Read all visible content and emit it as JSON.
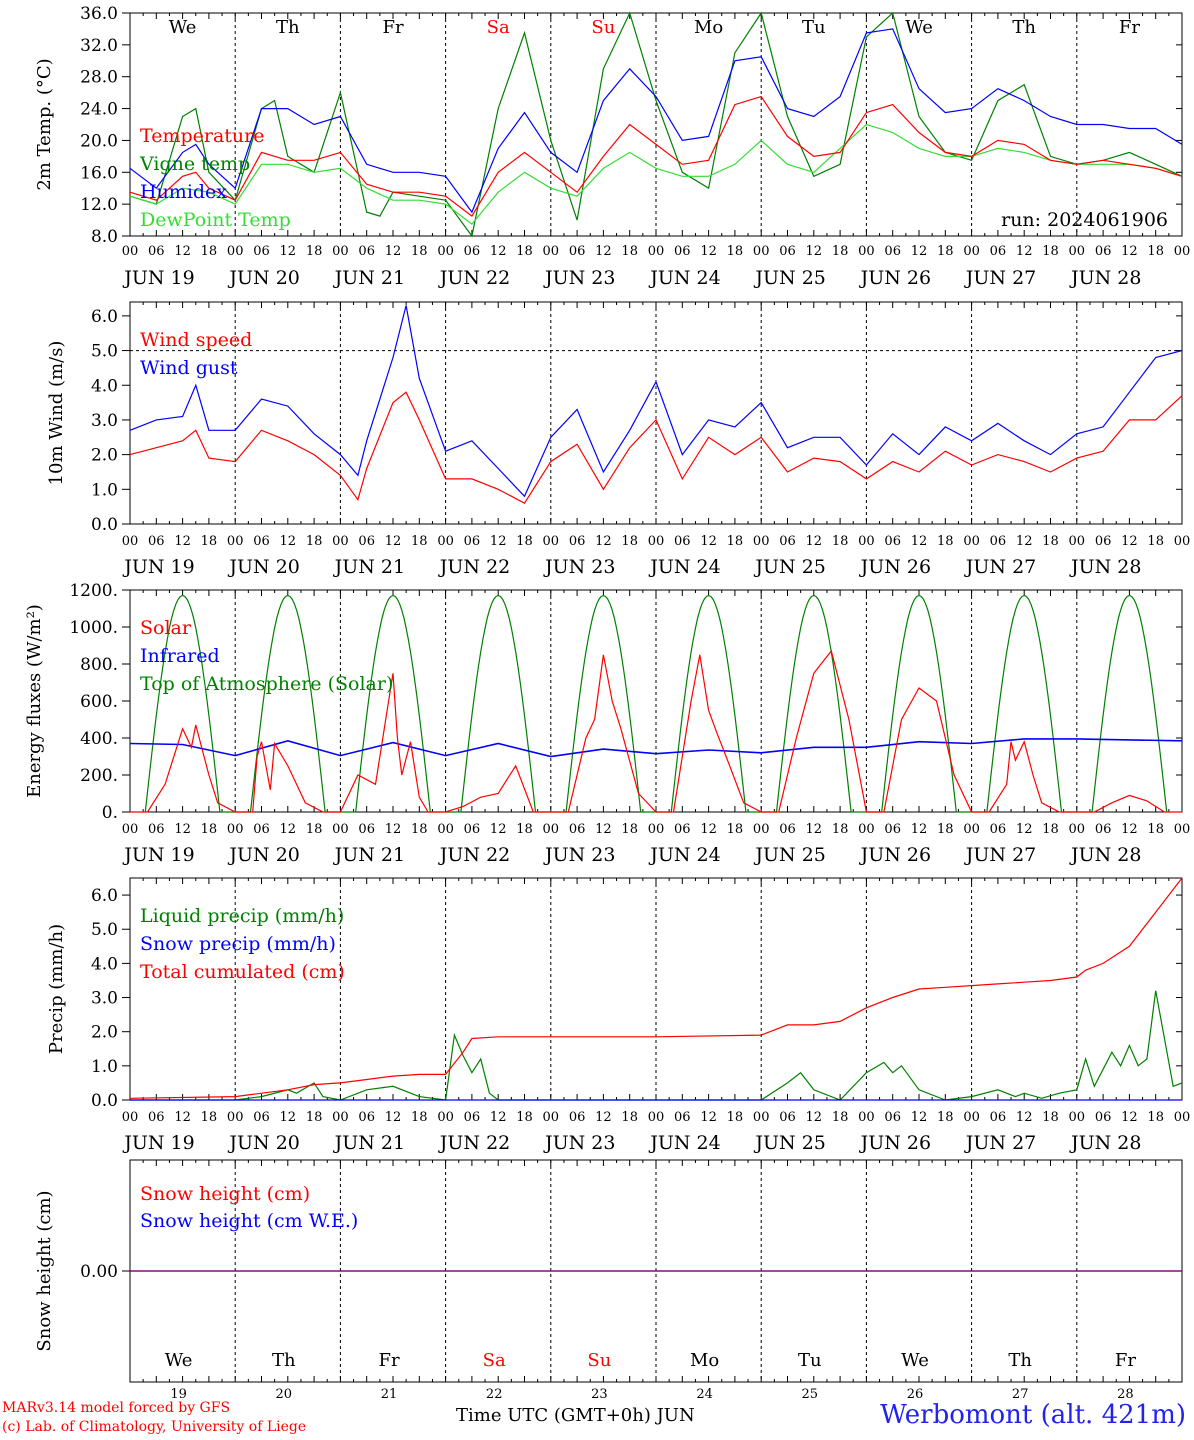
{
  "footer": {
    "credit_line1": "MARv3.14 model forced by GFS",
    "credit_line2": "(c) Lab. of Climatology, University of Liege",
    "xaxis_title": "Time UTC (GMT+0h) JUN",
    "station": "Werbomont (alt. 421m)"
  },
  "colors": {
    "red": "#ff0000",
    "green": "#008000",
    "blue": "#0000ff",
    "lightgreen": "#33dd33",
    "purple": "#800080"
  },
  "days": [
    "We",
    "Th",
    "Fr",
    "Sa",
    "Su",
    "Mo",
    "Tu",
    "We",
    "Th",
    "Fr"
  ],
  "weekend_days": [
    "Sa",
    "Su"
  ],
  "dates": [
    "JUN 19",
    "JUN 20",
    "JUN 21",
    "JUN 22",
    "JUN 23",
    "JUN 24",
    "JUN 25",
    "JUN 26",
    "JUN 27",
    "JUN 28"
  ],
  "bottom_dates": [
    "19",
    "20",
    "21",
    "22",
    "23",
    "24",
    "25",
    "26",
    "27",
    "28"
  ],
  "hour_ticks": [
    "00",
    "06",
    "12",
    "18"
  ],
  "final_tick": "00",
  "chart_data": [
    {
      "type": "line",
      "ylabel": "2m Temp. (°C)",
      "ylim": [
        8,
        36
      ],
      "yticks": [
        "8.0",
        "12.0",
        "16.0",
        "20.0",
        "24.0",
        "28.0",
        "32.0",
        "36.0"
      ],
      "yticks_values": [
        8,
        12,
        16,
        20,
        24,
        28,
        32,
        36
      ],
      "x_unit": "hours since JUN 19 00 UTC",
      "annotation": "run: 2024061906",
      "series": [
        {
          "name": "Temperature",
          "color": "#ff0000",
          "x": [
            0,
            6,
            12,
            15,
            18,
            24,
            30,
            36,
            42,
            48,
            54,
            60,
            66,
            72,
            78,
            84,
            90,
            96,
            102,
            108,
            114,
            120,
            126,
            132,
            138,
            144,
            150,
            156,
            162,
            168,
            174,
            180,
            186,
            192,
            198,
            204,
            210,
            216,
            222,
            228,
            234,
            240
          ],
          "values": [
            13.5,
            12.5,
            15.5,
            16,
            14,
            12.5,
            18.5,
            17.5,
            17.5,
            18.5,
            14.5,
            13.5,
            13.5,
            13,
            10.5,
            16,
            18.5,
            16,
            13.5,
            18,
            22,
            19.5,
            17,
            17.5,
            24.5,
            25.5,
            20.5,
            18,
            18.5,
            23.5,
            24.5,
            21,
            18.5,
            18,
            20,
            19.5,
            17.5,
            17,
            17.5,
            17,
            16.5,
            15.5
          ]
        },
        {
          "name": "Vigne temp",
          "color": "#008000",
          "x": [
            0,
            6,
            12,
            15,
            18,
            24,
            30,
            33,
            36,
            42,
            48,
            54,
            57,
            60,
            66,
            72,
            78,
            84,
            90,
            96,
            102,
            108,
            114,
            120,
            126,
            132,
            138,
            144,
            150,
            156,
            162,
            168,
            174,
            180,
            186,
            192,
            198,
            204,
            210,
            216,
            222,
            228,
            234,
            240
          ],
          "values": [
            13,
            12,
            23,
            24,
            16,
            12.5,
            24,
            25,
            18,
            16,
            26,
            11,
            10.5,
            13.5,
            13,
            12.5,
            7,
            24,
            33.5,
            20,
            10,
            29,
            36,
            25,
            16,
            14,
            31,
            36,
            23,
            15.5,
            17,
            33,
            36,
            23,
            18.5,
            17.5,
            25,
            27,
            18,
            17,
            17.5,
            18.5,
            17,
            15.5
          ]
        },
        {
          "name": "Humidex",
          "color": "#0000ff",
          "x": [
            0,
            6,
            12,
            15,
            18,
            24,
            30,
            36,
            42,
            48,
            54,
            60,
            66,
            72,
            78,
            84,
            90,
            96,
            102,
            108,
            114,
            120,
            126,
            132,
            138,
            144,
            150,
            156,
            162,
            168,
            174,
            180,
            186,
            192,
            198,
            204,
            210,
            216,
            222,
            228,
            234,
            240
          ],
          "values": [
            16.5,
            14,
            18.5,
            19.5,
            17,
            14,
            24,
            24,
            22,
            23,
            17,
            16,
            16,
            15.5,
            11,
            19,
            23.5,
            18.5,
            16,
            25,
            29,
            25.5,
            20,
            20.5,
            30,
            30.5,
            24,
            23,
            25.5,
            33.5,
            34,
            26.5,
            23.5,
            24,
            26.5,
            25,
            23,
            22,
            22,
            21.5,
            21.5,
            19.5
          ]
        },
        {
          "name": "DewPoint Temp",
          "color": "#33dd33",
          "x": [
            0,
            6,
            12,
            18,
            24,
            30,
            36,
            42,
            48,
            54,
            60,
            66,
            72,
            78,
            84,
            90,
            96,
            102,
            108,
            114,
            120,
            126,
            132,
            138,
            144,
            150,
            156,
            162,
            168,
            174,
            180,
            186,
            192,
            198,
            204,
            210,
            216,
            222,
            228,
            234,
            240
          ],
          "values": [
            13,
            12,
            14,
            13.5,
            12,
            17,
            17,
            16,
            16.5,
            14,
            12.5,
            12.5,
            12,
            9.5,
            13.5,
            16,
            14,
            13,
            16.5,
            18.5,
            16.5,
            15.5,
            15.5,
            17,
            20,
            17,
            16,
            19,
            22,
            21,
            19,
            18,
            18,
            19,
            18.5,
            17.5,
            17,
            17,
            17,
            16.5,
            15.5
          ]
        }
      ]
    },
    {
      "type": "line",
      "ylabel": "10m Wind (m/s)",
      "ylim": [
        0,
        6.4
      ],
      "yticks": [
        "0.0",
        "1.0",
        "2.0",
        "3.0",
        "4.0",
        "5.0",
        "6.0"
      ],
      "yticks_values": [
        0,
        1,
        2,
        3,
        4,
        5,
        6
      ],
      "reference_line": 5.0,
      "x_unit": "hours since JUN 19 00 UTC",
      "series": [
        {
          "name": "Wind speed",
          "color": "#ff0000",
          "x": [
            0,
            6,
            12,
            15,
            18,
            24,
            30,
            36,
            42,
            48,
            52,
            54,
            60,
            63,
            66,
            72,
            78,
            84,
            90,
            96,
            102,
            108,
            114,
            120,
            126,
            132,
            138,
            144,
            150,
            156,
            162,
            168,
            174,
            180,
            186,
            192,
            198,
            204,
            210,
            216,
            222,
            228,
            234,
            240
          ],
          "values": [
            2.0,
            2.2,
            2.4,
            2.7,
            1.9,
            1.8,
            2.7,
            2.4,
            2.0,
            1.4,
            0.7,
            1.6,
            3.5,
            3.8,
            3.0,
            1.3,
            1.3,
            1.0,
            0.6,
            1.8,
            2.3,
            1.0,
            2.2,
            3.0,
            1.3,
            2.5,
            2.0,
            2.5,
            1.5,
            1.9,
            1.8,
            1.3,
            1.8,
            1.5,
            2.1,
            1.7,
            2.0,
            1.8,
            1.5,
            1.9,
            2.1,
            3.0,
            3.0,
            3.7
          ]
        },
        {
          "name": "Wind gust",
          "color": "#0000ff",
          "x": [
            0,
            6,
            12,
            15,
            18,
            24,
            30,
            36,
            42,
            48,
            52,
            54,
            60,
            63,
            66,
            72,
            78,
            84,
            90,
            96,
            102,
            108,
            114,
            120,
            126,
            132,
            138,
            144,
            150,
            156,
            162,
            168,
            174,
            180,
            186,
            192,
            198,
            204,
            210,
            216,
            222,
            228,
            234,
            240
          ],
          "values": [
            2.7,
            3.0,
            3.1,
            4.0,
            2.7,
            2.7,
            3.6,
            3.4,
            2.6,
            2.0,
            1.4,
            2.4,
            4.8,
            6.3,
            4.2,
            2.1,
            2.4,
            1.6,
            0.8,
            2.5,
            3.3,
            1.5,
            2.7,
            4.1,
            2.0,
            3.0,
            2.8,
            3.5,
            2.2,
            2.5,
            2.5,
            1.7,
            2.6,
            2.0,
            2.8,
            2.4,
            2.9,
            2.4,
            2.0,
            2.6,
            2.8,
            3.8,
            4.8,
            5.0
          ]
        }
      ]
    },
    {
      "type": "line",
      "ylabel": "Energy fluxes (W/m²)",
      "ylim": [
        0,
        1200
      ],
      "yticks": [
        "0.",
        "200.",
        "400.",
        "600.",
        "800.",
        "1000.",
        "1200."
      ],
      "yticks_values": [
        0,
        200,
        400,
        600,
        800,
        1000,
        1200
      ],
      "x_unit": "hours since JUN 19 00 UTC",
      "series": [
        {
          "name": "Solar",
          "color": "#ff0000",
          "x": [
            0,
            4,
            8,
            12,
            14,
            15,
            18,
            20,
            24,
            28,
            29,
            30,
            32,
            33,
            36,
            40,
            44,
            48,
            52,
            56,
            60,
            61,
            62,
            64,
            66,
            68,
            72,
            76,
            80,
            84,
            88,
            92,
            96,
            100,
            104,
            106,
            108,
            110,
            112,
            116,
            120,
            124,
            128,
            130,
            132,
            134,
            136,
            140,
            144,
            148,
            152,
            156,
            160,
            164,
            168,
            172,
            176,
            180,
            184,
            188,
            192,
            196,
            200,
            201,
            202,
            204,
            206,
            208,
            212,
            216,
            220,
            224,
            228,
            232,
            236,
            240
          ],
          "values": [
            0,
            0,
            150,
            450,
            350,
            470,
            200,
            50,
            0,
            0,
            300,
            380,
            120,
            370,
            250,
            50,
            0,
            0,
            200,
            150,
            750,
            400,
            200,
            380,
            80,
            0,
            0,
            30,
            80,
            100,
            250,
            0,
            0,
            0,
            400,
            500,
            850,
            600,
            450,
            100,
            0,
            0,
            600,
            850,
            550,
            420,
            300,
            50,
            0,
            0,
            400,
            750,
            870,
            500,
            0,
            0,
            500,
            670,
            600,
            200,
            0,
            0,
            150,
            380,
            280,
            380,
            200,
            50,
            0,
            0,
            0,
            50,
            90,
            60,
            0,
            0
          ]
        },
        {
          "name": "Infrared",
          "color": "#0000ff",
          "x": [
            0,
            12,
            24,
            36,
            48,
            60,
            72,
            84,
            96,
            108,
            120,
            132,
            144,
            156,
            168,
            180,
            192,
            204,
            216,
            228,
            240
          ],
          "values": [
            370,
            365,
            305,
            385,
            305,
            375,
            305,
            370,
            300,
            340,
            315,
            335,
            320,
            350,
            350,
            380,
            370,
            395,
            395,
            390,
            385
          ]
        },
        {
          "name": "Top of Atmosphere (Solar)",
          "color": "#008000",
          "peak": 1170,
          "sunrise_hour": 3.5,
          "sunset_hour": 20.5
        }
      ]
    },
    {
      "type": "line",
      "ylabel": "Precip (mm/h)",
      "ylim": [
        0,
        6.5
      ],
      "yticks": [
        "0.0",
        "1.0",
        "2.0",
        "3.0",
        "4.0",
        "5.0",
        "6.0"
      ],
      "yticks_values": [
        0,
        1,
        2,
        3,
        4,
        5,
        6
      ],
      "x_unit": "hours since JUN 19 00 UTC",
      "series": [
        {
          "name": "Liquid precip (mm/h)",
          "color": "#008000",
          "x": [
            0,
            24,
            30,
            36,
            38,
            42,
            44,
            48,
            54,
            60,
            66,
            72,
            74,
            76,
            78,
            80,
            82,
            84,
            90,
            96,
            120,
            144,
            150,
            153,
            156,
            162,
            168,
            172,
            174,
            176,
            180,
            186,
            192,
            198,
            202,
            204,
            208,
            212,
            216,
            218,
            220,
            222,
            224,
            226,
            228,
            230,
            232,
            234,
            238,
            240
          ],
          "values": [
            0,
            0,
            0.1,
            0.3,
            0.2,
            0.5,
            0.1,
            0,
            0.3,
            0.4,
            0.1,
            0,
            1.9,
            1.3,
            0.8,
            1.2,
            0.2,
            0,
            0,
            0,
            0,
            0,
            0.5,
            0.8,
            0.3,
            0,
            0.8,
            1.1,
            0.8,
            1.0,
            0.3,
            0,
            0.1,
            0.3,
            0.1,
            0.2,
            0.05,
            0.2,
            0.3,
            1.2,
            0.4,
            0.9,
            1.4,
            1.0,
            1.6,
            1.0,
            1.2,
            3.2,
            0.4,
            0.5
          ]
        },
        {
          "name": "Snow precip (mm/h)",
          "color": "#0000ff",
          "x": [
            0,
            240
          ],
          "values": [
            0,
            0
          ]
        },
        {
          "name": "Total cumulated (cm)",
          "color": "#ff0000",
          "x": [
            0,
            24,
            36,
            42,
            48,
            54,
            60,
            66,
            72,
            76,
            78,
            84,
            96,
            120,
            144,
            150,
            156,
            162,
            168,
            174,
            180,
            186,
            192,
            198,
            204,
            210,
            216,
            218,
            222,
            228,
            234,
            240
          ],
          "values": [
            0.05,
            0.1,
            0.3,
            0.45,
            0.5,
            0.6,
            0.7,
            0.75,
            0.75,
            1.4,
            1.8,
            1.85,
            1.85,
            1.85,
            1.9,
            2.2,
            2.2,
            2.3,
            2.7,
            3.0,
            3.25,
            3.3,
            3.35,
            3.4,
            3.45,
            3.5,
            3.6,
            3.8,
            4.0,
            4.5,
            5.5,
            6.5
          ]
        }
      ]
    },
    {
      "type": "line",
      "ylabel": "Snow height (cm)",
      "ylim": [
        -1,
        1
      ],
      "yticks": [
        "0.00"
      ],
      "yticks_values": [
        0
      ],
      "x_unit": "hours since JUN 19 00 UTC",
      "series": [
        {
          "name": "Snow height (cm)",
          "color": "#ff0000",
          "x": [
            0,
            240
          ],
          "values": [
            0,
            0
          ]
        },
        {
          "name": "Snow height (cm W.E.)",
          "color": "#0000ff",
          "x": [
            0,
            240
          ],
          "values": [
            0,
            0
          ]
        }
      ]
    }
  ]
}
